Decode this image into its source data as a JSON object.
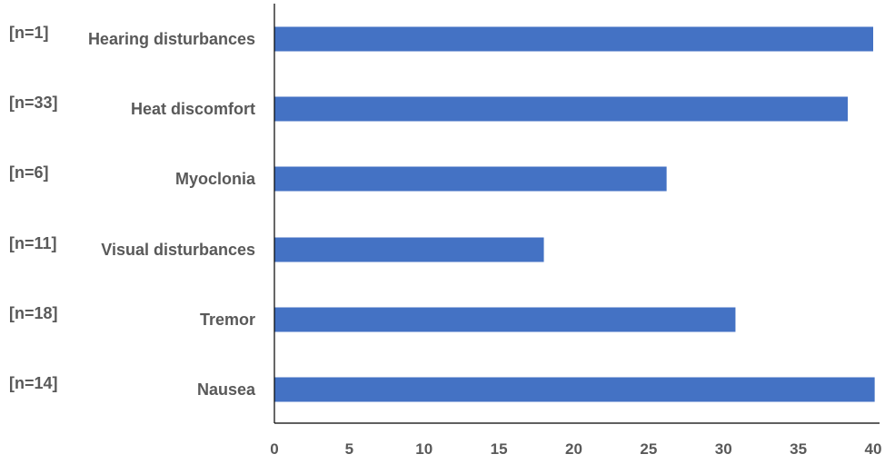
{
  "chart_data": {
    "type": "bar",
    "orientation": "horizontal",
    "categories": [
      "Hearing disturbances",
      "Heat discomfort",
      "Myoclonia",
      "Visual disturbances",
      "Tremor",
      "Nausea"
    ],
    "n_labels": [
      "[n=1]",
      "[n=33]",
      "[n=6]",
      "[n=11]",
      "[n=18]",
      "[n=14]"
    ],
    "values": [
      40,
      38.3,
      26.2,
      18.0,
      30.8,
      40.1
    ],
    "xlim": [
      0,
      40
    ],
    "x_ticks": [
      0,
      5,
      10,
      15,
      20,
      25,
      30,
      35,
      40
    ],
    "title": "",
    "xlabel": "",
    "ylabel": "",
    "grid": false,
    "legend": "none",
    "bar_color": "#4472C4",
    "axis_color": "#000000",
    "text_color": "#595959"
  }
}
